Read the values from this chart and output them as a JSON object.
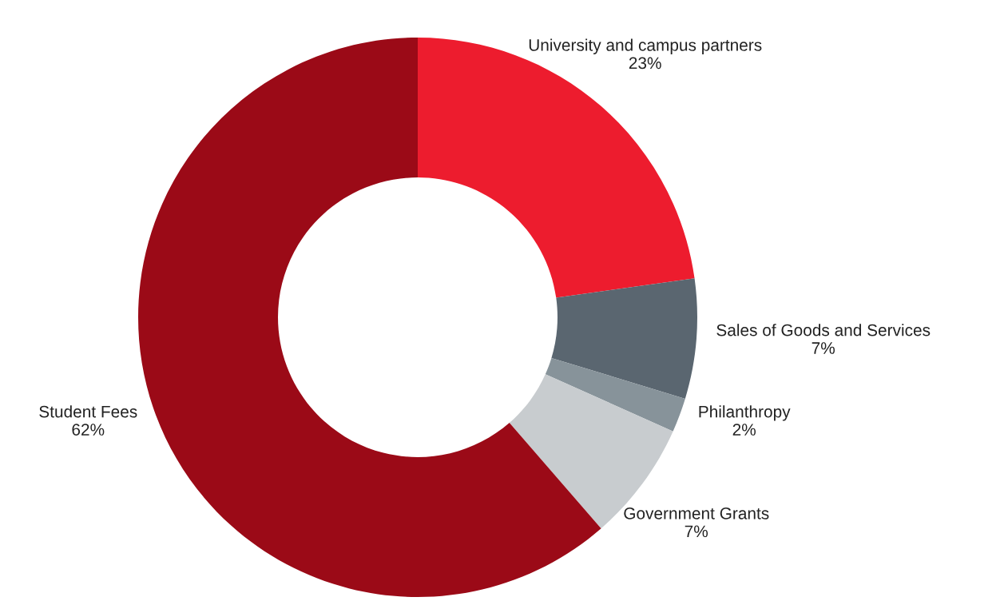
{
  "chart_data": {
    "type": "donut",
    "categories": [
      "University and campus partners",
      "Sales of Goods and Services",
      "Philanthropy",
      "Government Grants",
      "Student Fees"
    ],
    "values": [
      23,
      7,
      2,
      7,
      62
    ],
    "colors": [
      "#ed1c2e",
      "#5a6670",
      "#87939a",
      "#c8cccf",
      "#9b0a17"
    ],
    "value_labels": [
      "23%",
      "7%",
      "2%",
      "7%",
      "62%"
    ],
    "legend": false
  }
}
